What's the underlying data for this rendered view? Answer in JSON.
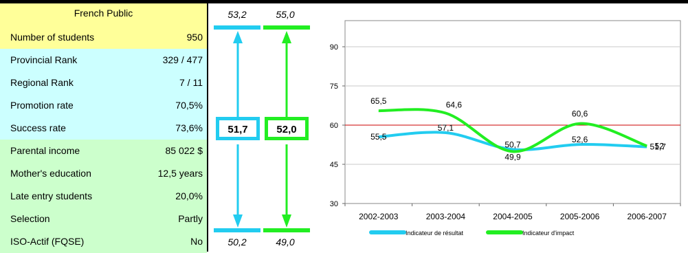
{
  "table": {
    "header": "French  Public",
    "rows": [
      {
        "label": "Number of students",
        "value": "950",
        "color": "#ffff99"
      },
      {
        "label": "Provincial Rank",
        "value": "329 / 477",
        "color": "#ccffff"
      },
      {
        "label": "Regional Rank",
        "value": "7 / 11",
        "color": "#ccffff"
      },
      {
        "label": "Promotion rate",
        "value": "70,5%",
        "color": "#ccffff"
      },
      {
        "label": "Success rate",
        "value": "73,6%",
        "color": "#ccffff"
      },
      {
        "label": "Parental income",
        "value": "85 022 $",
        "color": "#ccffcc"
      },
      {
        "label": "Mother's education",
        "value": "12,5 years",
        "color": "#ccffcc"
      },
      {
        "label": "Late entry students",
        "value": "20,0%",
        "color": "#ccffcc"
      },
      {
        "label": "Selection",
        "value": "Partly",
        "color": "#ccffcc"
      },
      {
        "label": "ISO-Actif (FQSE)",
        "value": "No",
        "color": "#ccffcc"
      }
    ]
  },
  "indicators": {
    "result": {
      "top": "53,2",
      "current": "51,7",
      "bottom": "50,2",
      "color": "#22ccf0"
    },
    "impact": {
      "top": "55,0",
      "current": "52,0",
      "bottom": "49,0",
      "color": "#22ee22"
    }
  },
  "chart_data": {
    "type": "line",
    "categories": [
      "2002-2003",
      "2003-2004",
      "2004-2005",
      "2005-2006",
      "2006-2007"
    ],
    "series": [
      {
        "name": "Indicateur de résultat",
        "values": [
          55.5,
          57.1,
          50.7,
          52.6,
          51.7
        ],
        "labels": [
          "55,5",
          "57,1",
          "50,7",
          "52,6",
          "51,7"
        ],
        "color": "#22ccf0"
      },
      {
        "name": "Indicateur d'impact",
        "values": [
          65.5,
          64.6,
          49.9,
          60.6,
          52.0
        ],
        "labels": [
          "65,5",
          "64,6",
          "49,9",
          "60,6",
          "52"
        ],
        "color": "#22ee22"
      }
    ],
    "reference_line": {
      "value": 60,
      "color": "#cc0000"
    },
    "ylim": [
      30,
      100
    ],
    "yticks": [
      "30",
      "45",
      "60",
      "75",
      "90"
    ],
    "ytick_values": [
      30,
      45,
      60,
      75,
      90
    ],
    "grid": true,
    "legend_position": "bottom"
  }
}
